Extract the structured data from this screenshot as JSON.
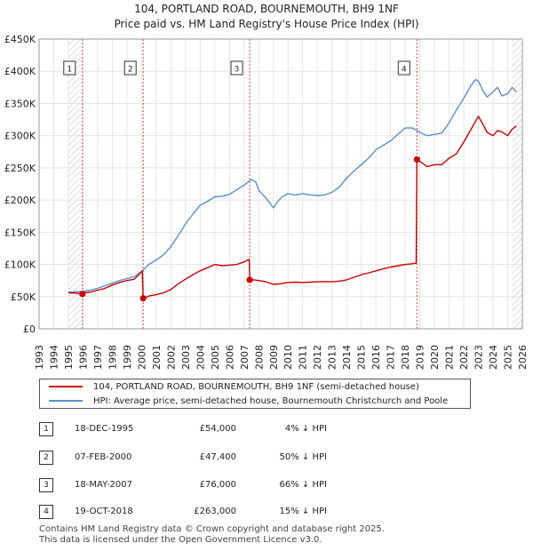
{
  "title_line1": "104, PORTLAND ROAD, BOURNEMOUTH, BH9 1NF",
  "title_line2": "Price paid vs. HM Land Registry's House Price Index (HPI)",
  "colors": {
    "property": "#cc0000",
    "hpi": "#5b8fd0",
    "hatch": "#cccccc",
    "event_line": "#dd4444"
  },
  "chart_data": {
    "type": "line",
    "title": "104, PORTLAND ROAD, BOURNEMOUTH, BH9 1NF — Price paid vs. HM Land Registry's House Price Index (HPI)",
    "xlim": [
      1993,
      2026
    ],
    "ylim": [
      0,
      450000
    ],
    "x_ticks": [
      1993,
      1994,
      1995,
      1996,
      1997,
      1998,
      1999,
      2000,
      2001,
      2002,
      2003,
      2004,
      2005,
      2006,
      2007,
      2008,
      2009,
      2010,
      2011,
      2012,
      2013,
      2014,
      2015,
      2016,
      2017,
      2018,
      2019,
      2020,
      2021,
      2022,
      2023,
      2024,
      2025,
      2026
    ],
    "y_ticks": [
      {
        "value": 0,
        "label": "£0"
      },
      {
        "value": 50000,
        "label": "£50K"
      },
      {
        "value": 100000,
        "label": "£100K"
      },
      {
        "value": 150000,
        "label": "£150K"
      },
      {
        "value": 200000,
        "label": "£200K"
      },
      {
        "value": 250000,
        "label": "£250K"
      },
      {
        "value": 300000,
        "label": "£300K"
      },
      {
        "value": 350000,
        "label": "£350K"
      },
      {
        "value": 400000,
        "label": "£400K"
      },
      {
        "value": 450000,
        "label": "£450K"
      }
    ],
    "hatched_ranges": [
      [
        1995.0,
        1995.8
      ],
      [
        2025.3,
        2026.0
      ]
    ],
    "series": [
      {
        "name": "104, PORTLAND ROAD, BOURNEMOUTH, BH9 1NF (semi-detached house)",
        "x": [
          1995.0,
          1995.5,
          1995.96,
          1996.0,
          1996.5,
          1997.0,
          1997.5,
          1998.0,
          1998.5,
          1999.0,
          1999.5,
          2000.05,
          2000.11,
          2000.5,
          2001.0,
          2001.5,
          2002.0,
          2002.5,
          2003.0,
          2003.5,
          2004.0,
          2004.5,
          2005.0,
          2005.5,
          2006.0,
          2006.5,
          2007.0,
          2007.35,
          2007.38,
          2007.7,
          2008.0,
          2008.5,
          2009.0,
          2009.5,
          2010.0,
          2010.5,
          2011.0,
          2011.5,
          2012.0,
          2012.5,
          2013.0,
          2013.5,
          2014.0,
          2014.5,
          2015.0,
          2015.5,
          2016.0,
          2016.5,
          2017.0,
          2017.5,
          2018.0,
          2018.5,
          2018.75,
          2018.8,
          2019.0,
          2019.5,
          2020.0,
          2020.5,
          2021.0,
          2021.5,
          2022.0,
          2022.5,
          2022.8,
          2023.0,
          2023.3,
          2023.6,
          2024.0,
          2024.3,
          2024.6,
          2025.0,
          2025.3,
          2025.6
        ],
        "values": [
          56000,
          55500,
          54000,
          55500,
          57000,
          60000,
          63000,
          68000,
          72000,
          75000,
          77000,
          90000,
          47400,
          51000,
          53000,
          56000,
          61000,
          70000,
          77000,
          84000,
          90000,
          95000,
          100000,
          98000,
          99000,
          100000,
          104000,
          108000,
          76000,
          76000,
          75000,
          73000,
          69000,
          70000,
          72000,
          72500,
          72000,
          72500,
          73000,
          73500,
          73000,
          74000,
          76000,
          80000,
          84000,
          87000,
          90000,
          93000,
          96000,
          98000,
          100000,
          101000,
          102000,
          263000,
          260000,
          252000,
          255000,
          255000,
          265000,
          272000,
          290000,
          310000,
          322000,
          330000,
          318000,
          305000,
          300000,
          308000,
          306000,
          300000,
          310000,
          315000
        ]
      },
      {
        "name": "HPI: Average price, semi-detached house, Bournemouth Christchurch and Poole",
        "x": [
          1995.0,
          1995.5,
          1996.0,
          1996.5,
          1997.0,
          1997.5,
          1998.0,
          1998.5,
          1999.0,
          1999.5,
          2000.0,
          2000.5,
          2001.0,
          2001.5,
          2002.0,
          2002.5,
          2003.0,
          2003.5,
          2004.0,
          2004.5,
          2005.0,
          2005.5,
          2006.0,
          2006.5,
          2007.0,
          2007.5,
          2007.8,
          2008.0,
          2008.5,
          2009.0,
          2009.3,
          2009.6,
          2010.0,
          2010.5,
          2011.0,
          2011.5,
          2012.0,
          2012.5,
          2013.0,
          2013.5,
          2014.0,
          2014.5,
          2015.0,
          2015.5,
          2016.0,
          2016.5,
          2017.0,
          2017.5,
          2018.0,
          2018.5,
          2019.0,
          2019.5,
          2020.0,
          2020.5,
          2021.0,
          2021.5,
          2022.0,
          2022.5,
          2022.8,
          2023.0,
          2023.3,
          2023.6,
          2024.0,
          2024.3,
          2024.6,
          2025.0,
          2025.3,
          2025.6
        ],
        "values": [
          57000,
          57500,
          58000,
          60000,
          63000,
          67000,
          71000,
          75000,
          78000,
          81000,
          89000,
          100000,
          107000,
          115000,
          128000,
          145000,
          163000,
          178000,
          192000,
          198000,
          205000,
          206000,
          209000,
          216000,
          223000,
          232000,
          228000,
          215000,
          203000,
          188000,
          198000,
          205000,
          210000,
          208000,
          210000,
          208000,
          207000,
          208000,
          212000,
          220000,
          234000,
          245000,
          255000,
          265000,
          278000,
          285000,
          292000,
          302000,
          312000,
          312000,
          305000,
          300000,
          302000,
          304000,
          320000,
          340000,
          358000,
          378000,
          387000,
          385000,
          370000,
          360000,
          368000,
          375000,
          362000,
          365000,
          375000,
          368000
        ]
      }
    ],
    "sales": [
      {
        "label": "1",
        "x": 1995.96,
        "value": 54000
      },
      {
        "label": "2",
        "x": 2000.11,
        "value": 47400
      },
      {
        "label": "3",
        "x": 2007.38,
        "value": 76000
      },
      {
        "label": "4",
        "x": 2018.8,
        "value": 263000
      }
    ]
  },
  "legend": {
    "property_label": "104, PORTLAND ROAD, BOURNEMOUTH, BH9 1NF (semi-detached house)",
    "hpi_label": "HPI: Average price, semi-detached house, Bournemouth Christchurch and Poole"
  },
  "transactions": [
    {
      "num": "1",
      "date": "18-DEC-1995",
      "price": "£54,000",
      "hpi": "4% ↓ HPI"
    },
    {
      "num": "2",
      "date": "07-FEB-2000",
      "price": "£47,400",
      "hpi": "50% ↓ HPI"
    },
    {
      "num": "3",
      "date": "18-MAY-2007",
      "price": "£76,000",
      "hpi": "66% ↓ HPI"
    },
    {
      "num": "4",
      "date": "19-OCT-2018",
      "price": "£263,000",
      "hpi": "15% ↓ HPI"
    }
  ],
  "footer_line1": "Contains HM Land Registry data © Crown copyright and database right 2025.",
  "footer_line2": "This data is licensed under the Open Government Licence v3.0."
}
